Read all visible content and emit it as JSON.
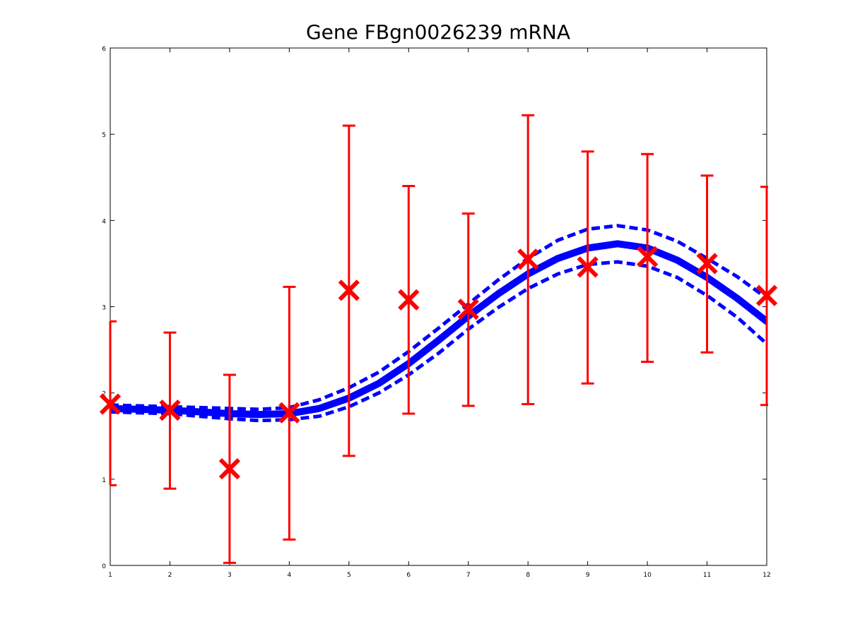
{
  "chart_data": {
    "type": "line",
    "title": "Gene FBgn0026239 mRNA",
    "xlabel": "",
    "ylabel": "",
    "xlim": [
      1,
      12
    ],
    "ylim": [
      0,
      6
    ],
    "xticks": [
      "1",
      "2",
      "3",
      "4",
      "5",
      "6",
      "7",
      "8",
      "9",
      "10",
      "11",
      "12"
    ],
    "yticks": [
      "0",
      "1",
      "2",
      "3",
      "4",
      "5",
      "6"
    ],
    "grid": false,
    "colors": {
      "model": "#0000ff",
      "observed": "#ff0000",
      "axes": "#000000"
    },
    "series": [
      {
        "role": "model-mean",
        "style": "solid",
        "x": [
          1,
          1.5,
          2,
          2.5,
          3,
          3.5,
          4,
          4.5,
          5,
          5.5,
          6,
          6.5,
          7,
          7.5,
          8,
          8.5,
          9,
          9.5,
          10,
          10.5,
          11,
          11.5,
          12
        ],
        "y": [
          1.82,
          1.81,
          1.8,
          1.78,
          1.76,
          1.75,
          1.76,
          1.82,
          1.94,
          2.11,
          2.34,
          2.61,
          2.89,
          3.15,
          3.38,
          3.56,
          3.68,
          3.73,
          3.68,
          3.54,
          3.34,
          3.1,
          2.83
        ]
      },
      {
        "role": "model-upper",
        "style": "dashed",
        "x": [
          1,
          1.5,
          2,
          2.5,
          3,
          3.5,
          4,
          4.5,
          5,
          5.5,
          6,
          6.5,
          7,
          7.5,
          8,
          8.5,
          9,
          9.5,
          10,
          10.5,
          11,
          11.5,
          12
        ],
        "y": [
          1.86,
          1.85,
          1.84,
          1.83,
          1.82,
          1.81,
          1.83,
          1.92,
          2.06,
          2.24,
          2.48,
          2.75,
          3.03,
          3.31,
          3.56,
          3.77,
          3.9,
          3.94,
          3.89,
          3.76,
          3.56,
          3.35,
          3.1
        ]
      },
      {
        "role": "model-lower",
        "style": "dashed",
        "x": [
          1,
          1.5,
          2,
          2.5,
          3,
          3.5,
          4,
          4.5,
          5,
          5.5,
          6,
          6.5,
          7,
          7.5,
          8,
          8.5,
          9,
          9.5,
          10,
          10.5,
          11,
          11.5,
          12
        ],
        "y": [
          1.78,
          1.77,
          1.76,
          1.73,
          1.7,
          1.68,
          1.69,
          1.73,
          1.84,
          2.0,
          2.21,
          2.46,
          2.74,
          2.99,
          3.21,
          3.38,
          3.49,
          3.52,
          3.47,
          3.34,
          3.13,
          2.88,
          2.57
        ]
      }
    ],
    "observations": {
      "marker": "x",
      "x": [
        1,
        2,
        3,
        4,
        5,
        6,
        7,
        8,
        9,
        10,
        11,
        12
      ],
      "y": [
        1.87,
        1.8,
        1.12,
        1.77,
        3.19,
        3.08,
        2.97,
        3.55,
        3.46,
        3.58,
        3.5,
        3.13
      ],
      "lower": [
        0.93,
        0.89,
        0.03,
        0.3,
        1.27,
        1.76,
        1.85,
        1.87,
        2.11,
        2.36,
        2.47,
        1.86
      ],
      "upper": [
        2.83,
        2.7,
        2.21,
        3.23,
        5.1,
        4.4,
        4.08,
        5.22,
        4.8,
        4.77,
        4.52,
        4.39
      ]
    }
  }
}
